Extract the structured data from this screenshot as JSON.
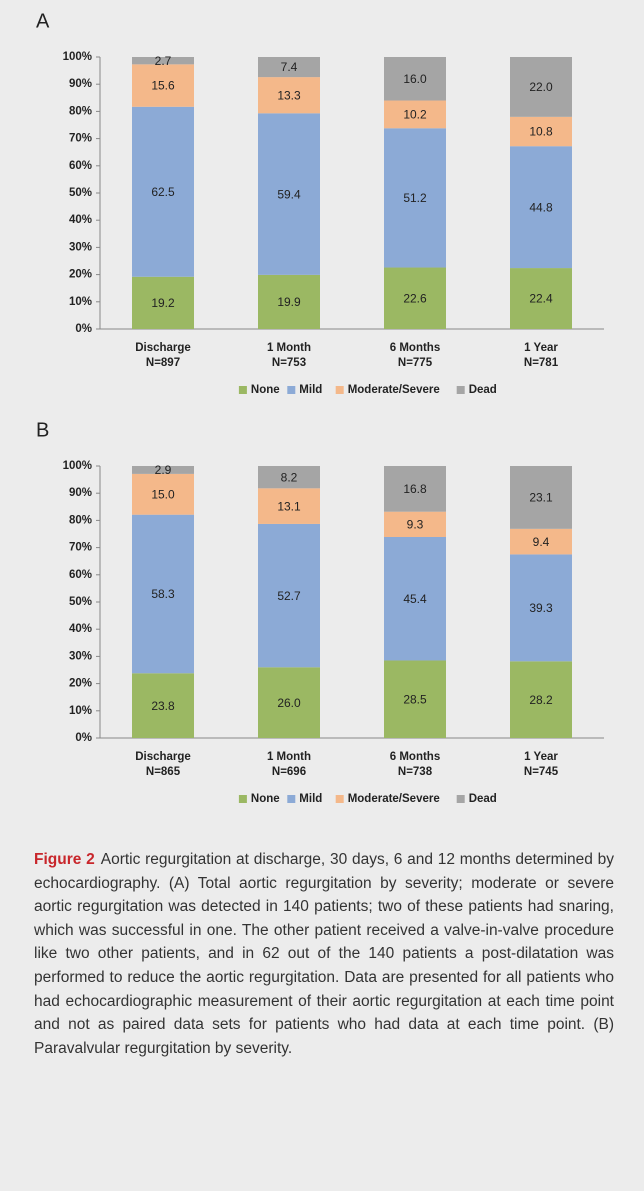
{
  "chart_data": [
    {
      "type": "stacked_bar",
      "title": "A",
      "categories": [
        [
          "Discharge",
          "N=897"
        ],
        [
          "1 Month",
          "N=753"
        ],
        [
          "6 Months",
          "N=775"
        ],
        [
          "1 Year",
          "N=781"
        ]
      ],
      "series": [
        {
          "name": "None",
          "color": "#9bb863",
          "values": [
            19.2,
            19.9,
            22.6,
            22.4
          ],
          "value_labels": [
            "19.2",
            "19.9",
            "22.6",
            "22.4"
          ]
        },
        {
          "name": "Mild",
          "color": "#8caad6",
          "values": [
            62.5,
            59.4,
            51.2,
            44.8
          ],
          "value_labels": [
            "62.5",
            "59.4",
            "51.2",
            "44.8"
          ]
        },
        {
          "name": "Moderate/Severe",
          "color": "#f4b88a",
          "values": [
            15.6,
            13.3,
            10.2,
            10.8
          ],
          "value_labels": [
            "15.6",
            "13.3",
            "10.2",
            "10.8"
          ]
        },
        {
          "name": "Dead",
          "color": "#a5a5a5",
          "values": [
            2.7,
            7.4,
            16.0,
            22.0
          ],
          "value_labels": [
            "2.7",
            "7.4",
            "16.0",
            "22.0"
          ]
        }
      ],
      "ylim": [
        0,
        100
      ],
      "yticks": [
        {
          "value": 0,
          "label": "0%"
        },
        {
          "value": 10,
          "label": "10%"
        },
        {
          "value": 20,
          "label": "20%"
        },
        {
          "value": 30,
          "label": "30%"
        },
        {
          "value": 40,
          "label": "40%"
        },
        {
          "value": 50,
          "label": "50%"
        },
        {
          "value": 60,
          "label": "60%"
        },
        {
          "value": 70,
          "label": "70%"
        },
        {
          "value": 80,
          "label": "80%"
        },
        {
          "value": 90,
          "label": "90%"
        },
        {
          "value": 100,
          "label": "100%"
        }
      ],
      "grid": false,
      "legend": "bottom"
    },
    {
      "type": "stacked_bar",
      "title": "B",
      "categories": [
        [
          "Discharge",
          "N=865"
        ],
        [
          "1 Month",
          "N=696"
        ],
        [
          "6 Months",
          "N=738"
        ],
        [
          "1 Year",
          "N=745"
        ]
      ],
      "series": [
        {
          "name": "None",
          "color": "#9bb863",
          "values": [
            23.8,
            26.0,
            28.5,
            28.2
          ],
          "value_labels": [
            "23.8",
            "26.0",
            "28.5",
            "28.2"
          ]
        },
        {
          "name": "Mild",
          "color": "#8caad6",
          "values": [
            58.3,
            52.7,
            45.4,
            39.3
          ],
          "value_labels": [
            "58.3",
            "52.7",
            "45.4",
            "39.3"
          ]
        },
        {
          "name": "Moderate/Severe",
          "color": "#f4b88a",
          "values": [
            15.0,
            13.1,
            9.3,
            9.4
          ],
          "value_labels": [
            "15.0",
            "13.1",
            "9.3",
            "9.4"
          ]
        },
        {
          "name": "Dead",
          "color": "#a5a5a5",
          "values": [
            2.9,
            8.2,
            16.8,
            23.1
          ],
          "value_labels": [
            "2.9",
            "8.2",
            "16.8",
            "23.1"
          ]
        }
      ],
      "ylim": [
        0,
        100
      ],
      "yticks": [
        {
          "value": 0,
          "label": "0%"
        },
        {
          "value": 10,
          "label": "10%"
        },
        {
          "value": 20,
          "label": "20%"
        },
        {
          "value": 30,
          "label": "30%"
        },
        {
          "value": 40,
          "label": "40%"
        },
        {
          "value": 50,
          "label": "50%"
        },
        {
          "value": 60,
          "label": "60%"
        },
        {
          "value": 70,
          "label": "70%"
        },
        {
          "value": 80,
          "label": "80%"
        },
        {
          "value": 90,
          "label": "90%"
        },
        {
          "value": 100,
          "label": "100%"
        }
      ],
      "grid": false,
      "legend": "bottom"
    }
  ],
  "figure_label": "Figure 2",
  "caption": "Aortic regurgitation at discharge, 30 days, 6 and 12 months determined by echocardiography. (A) Total aortic regurgitation by severity; moderate or severe aortic regurgitation was detected in 140 patients; two of these patients had snaring, which was successful in one. The other patient received a valve-in-valve procedure like two other patients, and in 62 out of the 140 patients a post-dilatation was performed to reduce the aortic regurgitation. Data are presented for all patients who had echocardiographic measurement of their aortic regurgitation at each time point and not as paired data sets for patients who had data at each time point. (B) Paravalvular regurgitation by severity."
}
